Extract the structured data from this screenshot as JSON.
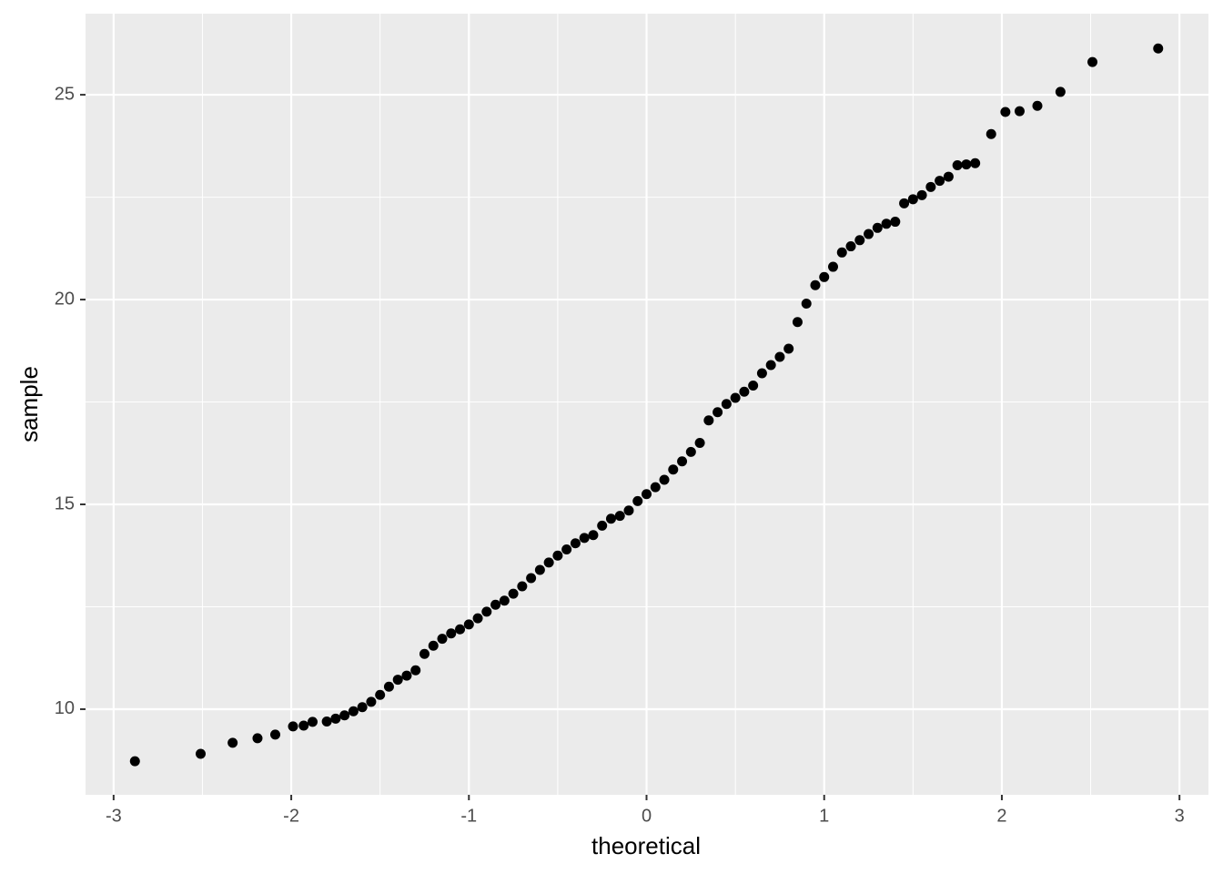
{
  "chart_data": {
    "type": "scatter",
    "x_label": "theoretical",
    "y_label": "sample",
    "xlim": [
      -3.158,
      3.163
    ],
    "ylim": [
      7.91,
      26.98
    ],
    "xticks": [
      {
        "value": -3,
        "label": "-3"
      },
      {
        "value": -2,
        "label": "-2"
      },
      {
        "value": -1,
        "label": "-1"
      },
      0,
      1,
      2,
      3
    ],
    "yticks": [
      10,
      15,
      20,
      25
    ],
    "x_minor_grid": [
      -2.5,
      -1.5,
      -0.5,
      0.5,
      1.5,
      2.5
    ],
    "y_minor_grid": [
      12.5,
      17.5,
      22.5
    ],
    "grid": true,
    "color": "#000000",
    "panel_color": "#ebebeb",
    "x": [
      -2.88,
      -2.51,
      -2.33,
      -2.19,
      -2.09,
      -1.99,
      -1.93,
      -1.88,
      -1.8,
      -1.75,
      -1.7,
      -1.65,
      -1.6,
      -1.55,
      -1.5,
      -1.45,
      -1.4,
      -1.35,
      -1.3,
      -1.25,
      -1.2,
      -1.15,
      -1.1,
      -1.05,
      -1.0,
      -0.95,
      -0.9,
      -0.85,
      -0.8,
      -0.75,
      -0.7,
      -0.65,
      -0.6,
      -0.55,
      -0.5,
      -0.45,
      -0.4,
      -0.35,
      -0.3,
      -0.25,
      -0.2,
      -0.15,
      -0.1,
      -0.05,
      0.0,
      0.05,
      0.1,
      0.15,
      0.2,
      0.25,
      0.3,
      0.35,
      0.4,
      0.45,
      0.5,
      0.55,
      0.6,
      0.65,
      0.7,
      0.75,
      0.8,
      0.85,
      0.9,
      0.95,
      1.0,
      1.05,
      1.1,
      1.15,
      1.2,
      1.25,
      1.3,
      1.35,
      1.4,
      1.45,
      1.5,
      1.55,
      1.6,
      1.65,
      1.7,
      1.75,
      1.8,
      1.85,
      1.94,
      2.02,
      2.1,
      2.2,
      2.33,
      2.51,
      2.88
    ],
    "values": [
      8.73,
      8.91,
      9.18,
      9.29,
      9.38,
      9.58,
      9.6,
      9.69,
      9.7,
      9.77,
      9.85,
      9.95,
      10.05,
      10.18,
      10.35,
      10.55,
      10.72,
      10.82,
      10.95,
      11.35,
      11.55,
      11.72,
      11.85,
      11.95,
      12.07,
      12.22,
      12.38,
      12.55,
      12.65,
      12.82,
      13.0,
      13.2,
      13.4,
      13.58,
      13.75,
      13.9,
      14.05,
      14.18,
      14.25,
      14.48,
      14.65,
      14.72,
      14.85,
      15.08,
      15.25,
      15.42,
      15.6,
      15.85,
      16.05,
      16.28,
      16.5,
      17.05,
      17.25,
      17.45,
      17.6,
      17.75,
      17.9,
      18.2,
      18.4,
      18.6,
      18.8,
      19.45,
      19.9,
      20.35,
      20.55,
      20.8,
      21.15,
      21.3,
      21.45,
      21.6,
      21.75,
      21.85,
      21.9,
      22.35,
      22.45,
      22.55,
      22.75,
      22.9,
      23.0,
      23.28,
      23.3,
      23.33,
      24.04,
      24.58,
      24.6,
      24.73,
      25.07,
      25.8,
      26.13
    ]
  }
}
